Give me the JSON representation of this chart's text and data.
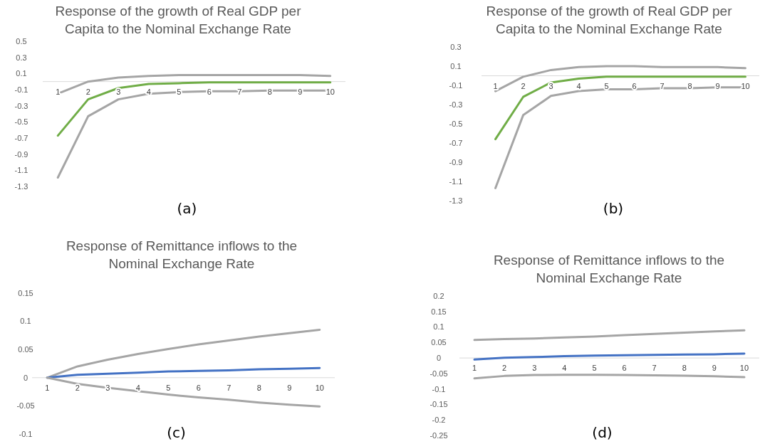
{
  "chart_data": [
    {
      "type": "line",
      "title": "Response of the growth of Real GDP per Capita to the Nominal Exchange Rate",
      "categories": [
        "1",
        "2",
        "3",
        "4",
        "5",
        "6",
        "7",
        "8",
        "9",
        "10"
      ],
      "ylim": [
        -1.3,
        0.5
      ],
      "yticks": [
        -1.3,
        -1.1,
        -0.9,
        -0.7,
        -0.5,
        -0.3,
        -0.1,
        0.1,
        0.3,
        0.5
      ],
      "grid": false,
      "annotations": [
        "(a)"
      ],
      "series": [
        {
          "color": "#a5a5a5",
          "values": [
            -0.15,
            0.0,
            0.05,
            0.07,
            0.08,
            0.08,
            0.08,
            0.08,
            0.08,
            0.07
          ]
        },
        {
          "color": "#70ad47",
          "values": [
            -0.67,
            -0.22,
            -0.08,
            -0.03,
            -0.02,
            -0.01,
            -0.01,
            -0.01,
            -0.01,
            -0.01
          ]
        },
        {
          "color": "#a5a5a5",
          "values": [
            -1.19,
            -0.43,
            -0.22,
            -0.15,
            -0.13,
            -0.12,
            -0.12,
            -0.11,
            -0.11,
            -0.11
          ]
        }
      ]
    },
    {
      "type": "line",
      "title": "Response of the growth of Real GDP per Capita to the Nominal Exchange Rate",
      "categories": [
        "1",
        "2",
        "3",
        "4",
        "5",
        "6",
        "7",
        "8",
        "9",
        "10"
      ],
      "ylim": [
        -1.3,
        0.3
      ],
      "yticks": [
        -1.3,
        -1.1,
        -0.9,
        -0.7,
        -0.5,
        -0.3,
        -0.1,
        0.1,
        0.3
      ],
      "grid": false,
      "annotations": [
        "(b)"
      ],
      "series": [
        {
          "color": "#a5a5a5",
          "values": [
            -0.16,
            -0.01,
            0.06,
            0.09,
            0.1,
            0.1,
            0.09,
            0.09,
            0.09,
            0.08
          ]
        },
        {
          "color": "#70ad47",
          "values": [
            -0.66,
            -0.22,
            -0.07,
            -0.03,
            -0.01,
            -0.01,
            -0.01,
            -0.01,
            -0.01,
            -0.01
          ]
        },
        {
          "color": "#a5a5a5",
          "values": [
            -1.17,
            -0.41,
            -0.21,
            -0.16,
            -0.14,
            -0.14,
            -0.13,
            -0.13,
            -0.12,
            -0.12
          ]
        }
      ]
    },
    {
      "type": "line",
      "title": "Response of Remittance inflows to the Nominal Exchange Rate",
      "categories": [
        "1",
        "2",
        "3",
        "4",
        "5",
        "6",
        "7",
        "8",
        "9",
        "10"
      ],
      "ylim": [
        -0.1,
        0.15
      ],
      "yticks": [
        -0.1,
        -0.05,
        0,
        0.05,
        0.1,
        0.15
      ],
      "grid": false,
      "annotations": [
        "(c)"
      ],
      "series": [
        {
          "color": "#a5a5a5",
          "values": [
            0,
            0.02,
            0.032,
            0.042,
            0.051,
            0.059,
            0.066,
            0.073,
            0.079,
            0.085
          ]
        },
        {
          "color": "#4472c4",
          "values": [
            0,
            0.005,
            0.007,
            0.009,
            0.011,
            0.012,
            0.013,
            0.015,
            0.016,
            0.017
          ]
        },
        {
          "color": "#a5a5a5",
          "values": [
            0,
            -0.011,
            -0.018,
            -0.024,
            -0.03,
            -0.035,
            -0.039,
            -0.044,
            -0.048,
            -0.051
          ]
        }
      ]
    },
    {
      "type": "line",
      "title": "Response of Remittance inflows to the Nominal Exchange Rate",
      "categories": [
        "1",
        "2",
        "3",
        "4",
        "5",
        "6",
        "7",
        "8",
        "9",
        "10"
      ],
      "ylim": [
        -0.25,
        0.2
      ],
      "yticks": [
        -0.25,
        -0.2,
        -0.15,
        -0.1,
        -0.05,
        0,
        0.05,
        0.1,
        0.15,
        0.2
      ],
      "grid": false,
      "annotations": [
        "(d)"
      ],
      "series": [
        {
          "color": "#a5a5a5",
          "values": [
            0.058,
            0.061,
            0.063,
            0.066,
            0.069,
            0.074,
            0.078,
            0.082,
            0.086,
            0.089
          ]
        },
        {
          "color": "#4472c4",
          "values": [
            -0.005,
            0.001,
            0.003,
            0.006,
            0.008,
            0.009,
            0.01,
            0.011,
            0.012,
            0.014
          ]
        },
        {
          "color": "#a5a5a5",
          "values": [
            -0.066,
            -0.058,
            -0.055,
            -0.054,
            -0.054,
            -0.055,
            -0.056,
            -0.057,
            -0.059,
            -0.062
          ]
        }
      ]
    }
  ]
}
